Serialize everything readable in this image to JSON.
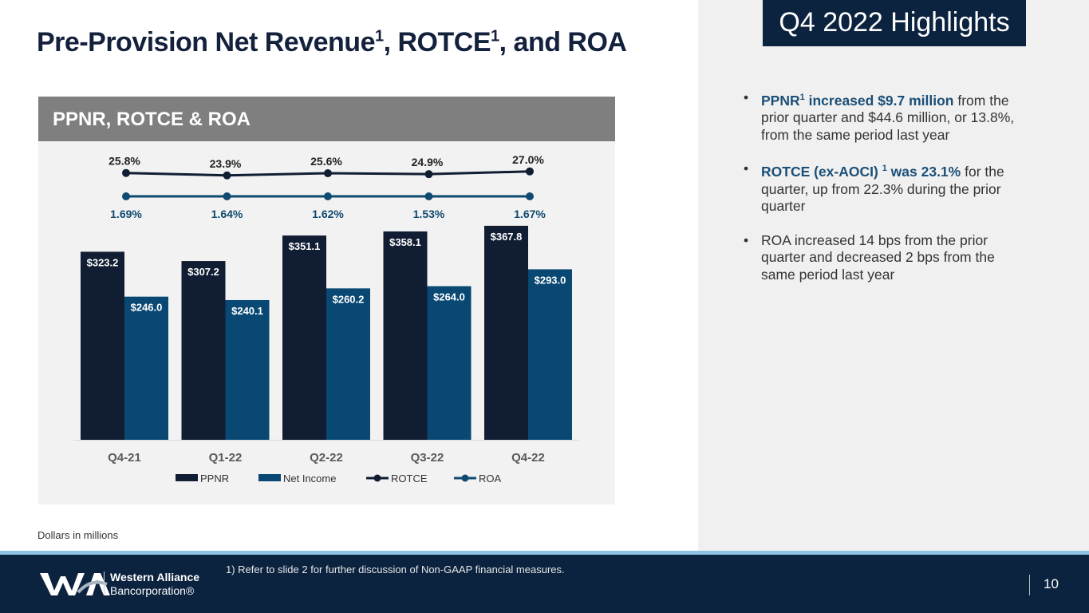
{
  "title": {
    "main": "Pre-Provision Net Revenue",
    "sup1": "1",
    "mid": ", ROTCE",
    "sup2": "1",
    "end": ", and ROA"
  },
  "highlights": {
    "title": "Q4 2022 Highlights",
    "bullets": [
      {
        "em": "PPNR",
        "em_sup": "1",
        "em2": " increased $9.7 million",
        "rest": " from the prior quarter and $44.6 million, or 13.8%, from the same period last year"
      },
      {
        "em": "ROTCE (ex-AOCI) ",
        "em_sup": "1",
        "em2": " was 23.1%",
        "rest": " for the quarter, up from 22.3% during the prior quarter"
      },
      {
        "rest": "ROA increased 14 bps from the prior quarter and decreased 2 bps from the same period last year"
      }
    ]
  },
  "panel_title": "PPNR, ROTCE & ROA",
  "dollars_note": "Dollars in millions",
  "footnote": "1)  Refer to slide 2 for further discussion of Non-GAAP financial measures.",
  "logo": {
    "line1": "Western Alliance",
    "line2": "Bancorporation®"
  },
  "page_number": "10",
  "colors": {
    "ppnr": "#111d33",
    "net_income": "#084873",
    "rotce": "#111d33",
    "roa": "#0f4a70",
    "navy": "#0c2340"
  },
  "chart_data": {
    "type": "bar",
    "title": "PPNR, ROTCE & ROA",
    "categories": [
      "Q4-21",
      "Q1-22",
      "Q2-22",
      "Q3-22",
      "Q4-22"
    ],
    "series": [
      {
        "name": "PPNR",
        "kind": "bar",
        "values": [
          323.2,
          307.2,
          351.1,
          358.1,
          367.8
        ],
        "labels": [
          "$323.2",
          "$307.2",
          "$351.1",
          "$358.1",
          "$367.8"
        ]
      },
      {
        "name": "Net Income",
        "kind": "bar",
        "values": [
          246.0,
          240.1,
          260.2,
          264.0,
          293.0
        ],
        "labels": [
          "$246.0",
          "$240.1",
          "$260.2",
          "$264.0",
          "$293.0"
        ]
      },
      {
        "name": "ROTCE",
        "kind": "line",
        "values": [
          25.8,
          23.9,
          25.6,
          24.9,
          27.0
        ],
        "labels": [
          "25.8%",
          "23.9%",
          "25.6%",
          "24.9%",
          "27.0%"
        ]
      },
      {
        "name": "ROA",
        "kind": "line",
        "values": [
          1.69,
          1.64,
          1.62,
          1.53,
          1.67
        ],
        "labels": [
          "1.69%",
          "1.64%",
          "1.62%",
          "1.53%",
          "1.67%"
        ]
      }
    ],
    "xlabel": "",
    "ylabel": "Dollars in millions",
    "ylim": [
      0,
      480
    ],
    "grid": false,
    "legend": "bottom"
  }
}
